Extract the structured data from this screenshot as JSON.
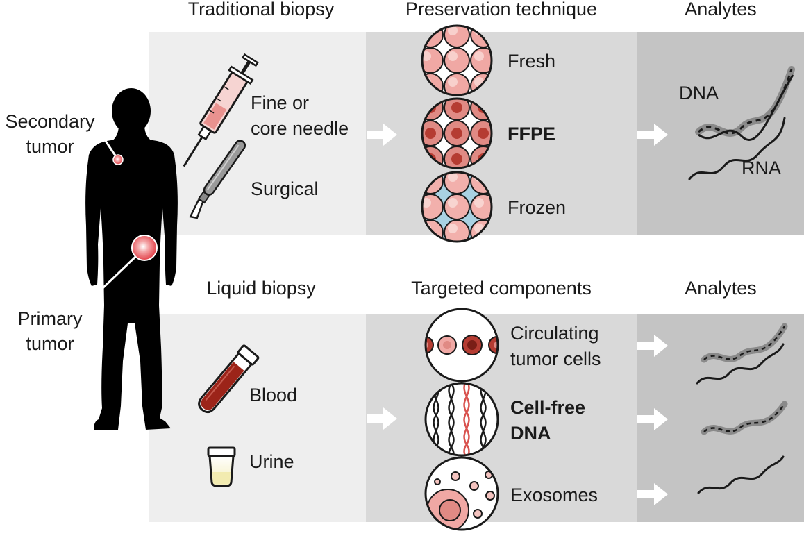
{
  "headers": {
    "traditional_biopsy": "Traditional biopsy",
    "preservation_technique": "Preservation technique",
    "analytes_top": "Analytes",
    "liquid_biopsy": "Liquid biopsy",
    "targeted_components": "Targeted components",
    "analytes_bottom": "Analytes"
  },
  "body_labels": {
    "secondary_tumor_line1": "Secondary",
    "secondary_tumor_line2": "tumor",
    "primary_tumor_line1": "Primary",
    "primary_tumor_line2": "tumor"
  },
  "traditional_methods": {
    "needle_line1": "Fine or",
    "needle_line2": "core needle",
    "surgical": "Surgical"
  },
  "preservation": {
    "fresh": "Fresh",
    "ffpe": "FFPE",
    "frozen": "Frozen"
  },
  "analytes_traditional": {
    "dna": "DNA",
    "rna": "RNA"
  },
  "liquid_sources": {
    "blood": "Blood",
    "urine": "Urine"
  },
  "components": {
    "ctc_line1": "Circulating",
    "ctc_line2": "tumor cells",
    "cfdna_line1": "Cell-free",
    "cfdna_line2": "DNA",
    "exosomes": "Exosomes"
  },
  "colors": {
    "panel_light": "#eeeeee",
    "panel_mid": "#d9d9d9",
    "panel_dark": "#c4c4c4",
    "tumor_red": "#e0313a",
    "cell_pink": "#f2a8a4",
    "cell_dark": "#b53c32",
    "frozen_blue": "#a9d1e2",
    "blood_red": "#9c2419"
  }
}
